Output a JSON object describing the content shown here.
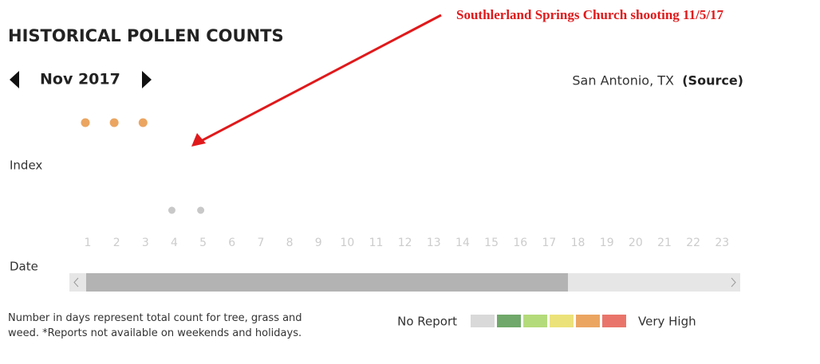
{
  "header": {
    "title": "HISTORICAL POLLEN COUNTS",
    "month": "Nov 2017",
    "location": "San Antonio, TX",
    "source": "(Source)"
  },
  "annotation": "Southlerland Springs Church shooting 11/5/17",
  "chart": {
    "y_label": "Index",
    "x_label": "Date",
    "days": [
      "1",
      "2",
      "3",
      "4",
      "5",
      "6",
      "7",
      "8",
      "9",
      "10",
      "11",
      "12",
      "13",
      "14",
      "15",
      "16",
      "17",
      "18",
      "19",
      "20",
      "21",
      "22",
      "23"
    ],
    "dots": [
      {
        "day": 1,
        "level": 4
      },
      {
        "day": 2,
        "level": 4
      },
      {
        "day": 3,
        "level": 4
      },
      {
        "day": 4,
        "level": 0
      },
      {
        "day": 5,
        "level": 0
      }
    ]
  },
  "footer": {
    "note": "Number in days represent total count for tree, grass and weed. *Reports not available on weekends and holidays.",
    "legend": {
      "low_label": "No Report",
      "high_label": "Very High",
      "colors": [
        "#d9d9d9",
        "#6fa86a",
        "#b4db7a",
        "#ece27a",
        "#eba561",
        "#e9756a"
      ]
    }
  }
}
